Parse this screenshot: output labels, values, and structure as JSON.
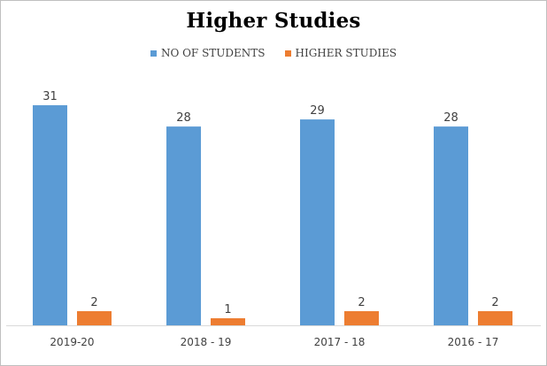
{
  "chart_data": {
    "type": "bar",
    "title": "Higher Studies",
    "categories": [
      "2019-20",
      "2018 - 19",
      "2017 - 18",
      "2016 - 17"
    ],
    "series": [
      {
        "name": "NO OF STUDENTS",
        "values": [
          31,
          28,
          29,
          28
        ],
        "color": "#5b9bd5"
      },
      {
        "name": "HIGHER STUDIES",
        "values": [
          2,
          1,
          2,
          2
        ],
        "color": "#ed7d31"
      }
    ],
    "ylim": [
      0,
      32
    ],
    "grid": false,
    "data_labels": true,
    "legend_position": "top"
  }
}
